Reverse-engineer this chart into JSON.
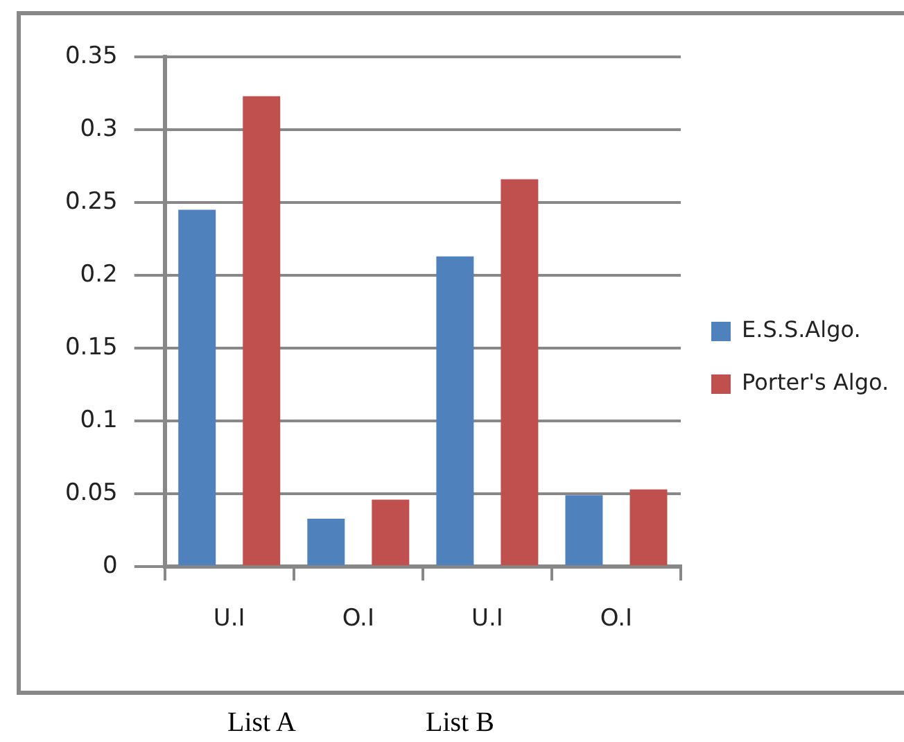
{
  "chart_data": {
    "type": "bar",
    "categories": [
      "U.I",
      "O.I",
      "U.I",
      "O.I"
    ],
    "series": [
      {
        "name": "E.S.S.Algo.",
        "color": "#4f81bd",
        "values": [
          0.245,
          0.033,
          0.213,
          0.049
        ]
      },
      {
        "name": "Porter's Algo.",
        "color": "#c0504d",
        "values": [
          0.323,
          0.046,
          0.266,
          0.053
        ]
      }
    ],
    "ylim": [
      0,
      0.35
    ],
    "yticks": [
      0,
      0.05,
      0.1,
      0.15,
      0.2,
      0.25,
      0.3,
      0.35
    ],
    "grid": "y",
    "legend": "right",
    "annotations": [
      "List A",
      "List B"
    ]
  }
}
